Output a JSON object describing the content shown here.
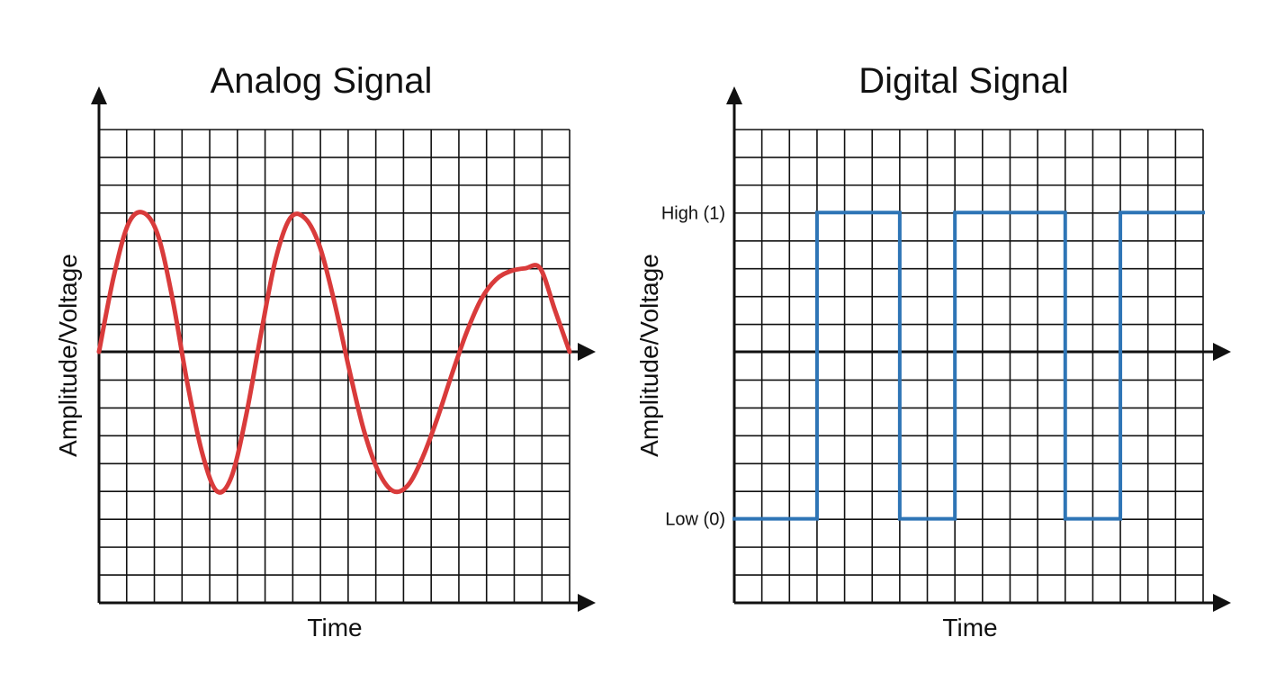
{
  "chart_data": [
    {
      "type": "line",
      "title": "Analog Signal",
      "xlabel": "Time",
      "ylabel": "Amplitude/Voltage",
      "grid": true,
      "xlim": [
        0,
        16
      ],
      "ylim": [
        -8.9,
        8.9
      ],
      "series": [
        {
          "color": "#d93b3b",
          "x": [
            0,
            0.5,
            1,
            1.5,
            2,
            2.5,
            3,
            3.5,
            4,
            4.5,
            5,
            5.5,
            6,
            6.5,
            7,
            7.5,
            8,
            8.5,
            9,
            9.5,
            10,
            10.5,
            11,
            11.5,
            12,
            12.5,
            13,
            13.5,
            14,
            14.5,
            15,
            15.5,
            16
          ],
          "y": [
            0,
            2.7,
            4.6,
            5,
            4.2,
            1.9,
            -1.1,
            -3.6,
            -5,
            -4.5,
            -2.3,
            0.6,
            3.3,
            4.8,
            4.8,
            3.8,
            1.8,
            -0.6,
            -2.8,
            -4.3,
            -5,
            -4.8,
            -3.8,
            -2.4,
            -0.8,
            0.7,
            1.9,
            2.6,
            2.9,
            3,
            3,
            1.5,
            0
          ]
        }
      ]
    },
    {
      "type": "line",
      "title": "Digital Signal",
      "xlabel": "Time",
      "ylabel": "Amplitude/Voltage",
      "grid": true,
      "xlim": [
        0,
        17
      ],
      "ylim": [
        -8.9,
        8.9
      ],
      "yticks": [
        {
          "value": 5,
          "label": "High (1)"
        },
        {
          "value": -6,
          "label": "Low (0)"
        }
      ],
      "series": [
        {
          "color": "#2e75b6",
          "x": [
            0,
            3,
            3,
            6,
            6,
            8,
            8,
            12,
            12,
            14,
            14,
            17
          ],
          "y": [
            -6,
            -6,
            5,
            5,
            -6,
            -6,
            5,
            5,
            -6,
            -6,
            5,
            5
          ]
        }
      ]
    }
  ],
  "colors": {
    "grid": "#111111",
    "axis": "#111111",
    "analog_line": "#d93b3b",
    "digital_line": "#2e75b6"
  }
}
